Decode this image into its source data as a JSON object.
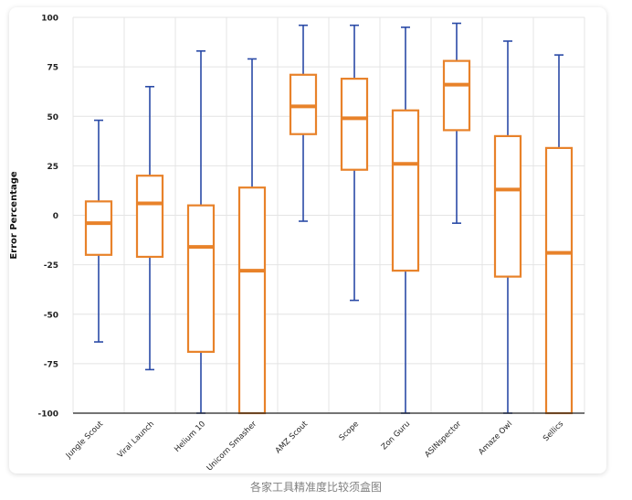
{
  "caption": "各家工具精准度比较须盒图",
  "chart_data": {
    "type": "boxplot",
    "title": "",
    "xlabel": "",
    "ylabel": "Error Percentage",
    "ylim": [
      -100,
      100
    ],
    "yticks": [
      100,
      75,
      50,
      25,
      0,
      -25,
      -50,
      -75,
      -100
    ],
    "grid": true,
    "legend": "none",
    "colors": {
      "box": "#e8822a",
      "whisker": "#2a4aa6",
      "grid": "#e4e4e4",
      "axis": "#222222"
    },
    "categories": [
      "Jungle Scout",
      "Viral Launch",
      "Helium 10",
      "Unicorn Smasher",
      "AMZ Scout",
      "Scope",
      "Zon Guru",
      "ASINspector",
      "Amaze Owl",
      "Sellics"
    ],
    "boxes": [
      {
        "min": -64,
        "q1": -20,
        "median": -4,
        "q3": 7,
        "max": 48
      },
      {
        "min": -78,
        "q1": -21,
        "median": 6,
        "q3": 20,
        "max": 65
      },
      {
        "min": -100,
        "q1": -69,
        "median": -16,
        "q3": 5,
        "max": 83
      },
      {
        "min": -100,
        "q1": -100,
        "median": -28,
        "q3": 14,
        "max": 79
      },
      {
        "min": -3,
        "q1": 41,
        "median": 55,
        "q3": 71,
        "max": 96
      },
      {
        "min": -43,
        "q1": 23,
        "median": 49,
        "q3": 69,
        "max": 96
      },
      {
        "min": -100,
        "q1": -28,
        "median": 26,
        "q3": 53,
        "max": 95
      },
      {
        "min": -4,
        "q1": 43,
        "median": 66,
        "q3": 78,
        "max": 97
      },
      {
        "min": -100,
        "q1": -31,
        "median": 13,
        "q3": 40,
        "max": 88
      },
      {
        "min": -100,
        "q1": -100,
        "median": -19,
        "q3": 34,
        "max": 81
      }
    ]
  }
}
